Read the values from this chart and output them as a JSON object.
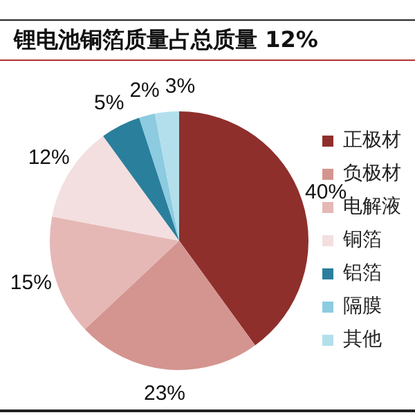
{
  "chart_data": {
    "type": "pie",
    "title": "锂电池铜箔质量占总质量 12%",
    "categories": [
      "正极材",
      "负极材",
      "电解液",
      "铜箔",
      "铝箔",
      "隔膜",
      "其他"
    ],
    "values": [
      40,
      23,
      15,
      12,
      5,
      2,
      3
    ],
    "value_labels": [
      "40%",
      "23%",
      "15%",
      "12%",
      "5%",
      "2%",
      "3%"
    ],
    "colors": [
      "#8e2f2c",
      "#d49590",
      "#e5b8b5",
      "#f3dfe0",
      "#2a7f9c",
      "#8ccbe0",
      "#b3dfec"
    ],
    "legend": "right"
  }
}
